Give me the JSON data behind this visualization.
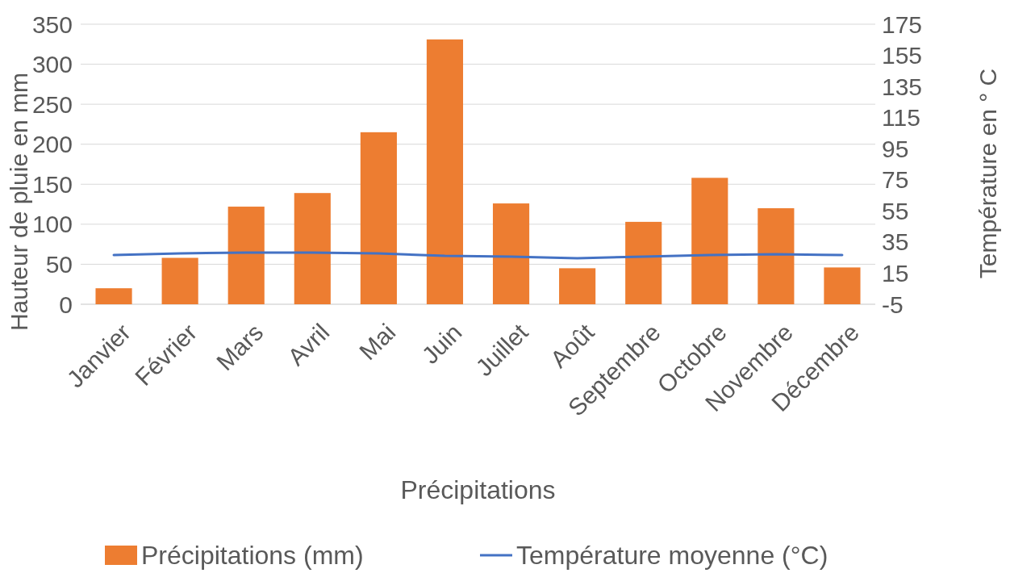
{
  "chart_data": {
    "type": "bar",
    "xlabel": "Précipitations",
    "ylabel": "Hauteur de pluie en mm",
    "y2label": "Température en ° C",
    "categories": [
      "Janvier",
      "Février",
      "Mars",
      "Avril",
      "Mai",
      "Juin",
      "Juillet",
      "Août",
      "Septembre",
      "Octobre",
      "Novembre",
      "Décembre"
    ],
    "series": [
      {
        "name": "Précipitations (mm)",
        "color": "#ed7d31",
        "values": [
          20,
          58,
          122,
          139,
          215,
          331,
          126,
          45,
          103,
          158,
          120,
          46
        ]
      },
      {
        "name": "Température moyenne (°C)",
        "type": "line",
        "axis": "y2",
        "color": "#4472c4",
        "values": [
          26.6,
          27.7,
          28.2,
          28.2,
          27.7,
          26.1,
          25.6,
          24.6,
          25.6,
          26.6,
          27.2,
          26.6
        ]
      }
    ],
    "ylim": [
      0,
      350
    ],
    "yticks": [
      0,
      50,
      100,
      150,
      200,
      250,
      300,
      350
    ],
    "y2lim": [
      -5,
      175
    ],
    "y2ticks": [
      -5,
      15,
      35,
      55,
      75,
      95,
      115,
      135,
      155,
      175
    ],
    "grid": "y",
    "legend": "bottom",
    "marker": "none",
    "line_style": "solid"
  }
}
